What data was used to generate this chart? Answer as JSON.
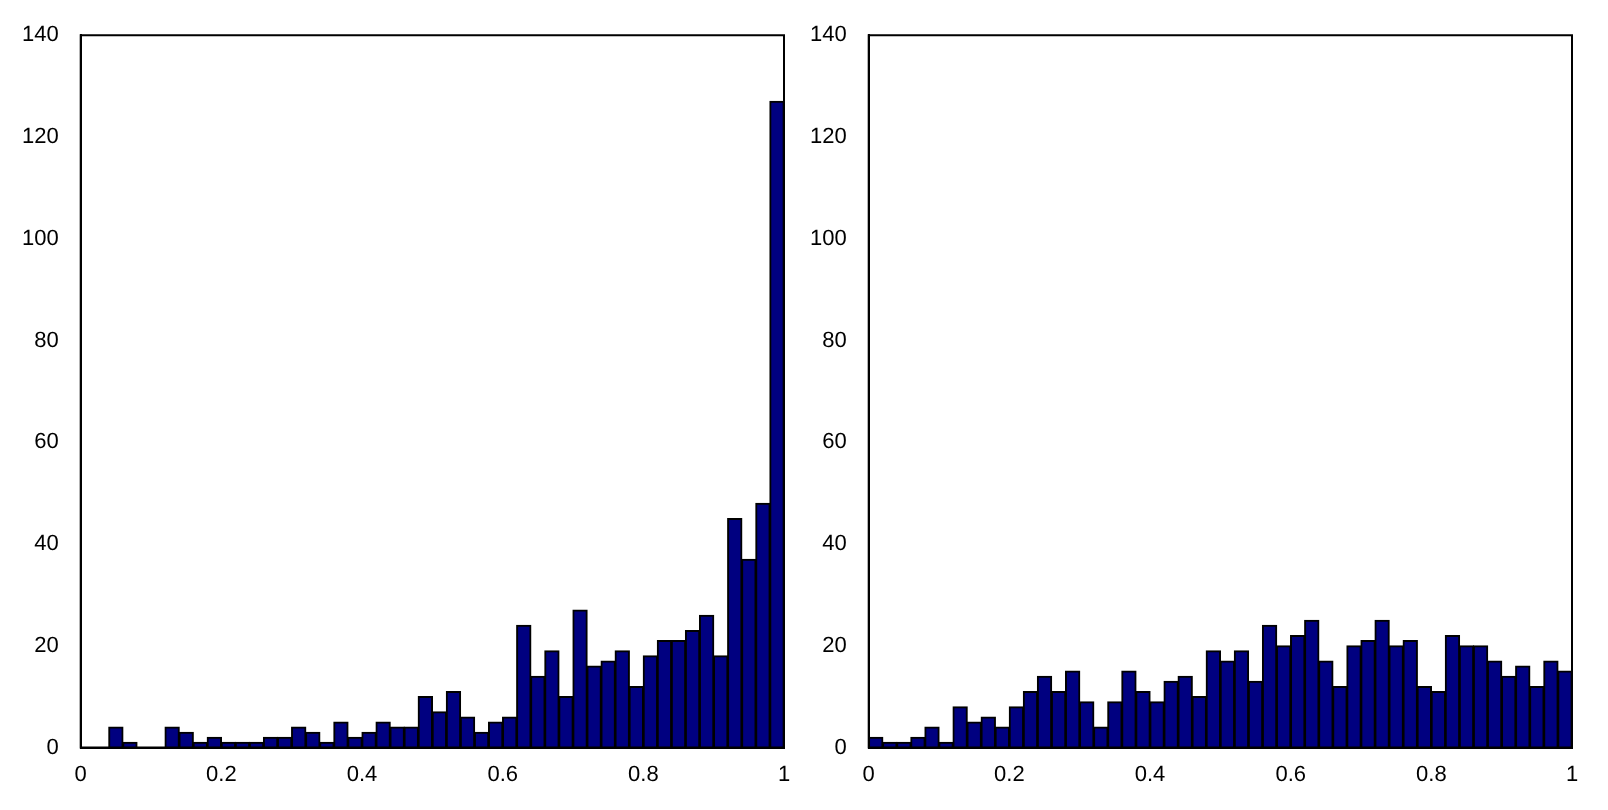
{
  "chart_data": [
    {
      "type": "histogram",
      "bins": [
        0,
        0.02,
        0.04,
        0.06,
        0.08,
        0.1,
        0.12,
        0.14,
        0.16,
        0.18,
        0.2,
        0.22,
        0.24,
        0.26,
        0.28,
        0.3,
        0.32,
        0.34,
        0.36,
        0.38,
        0.4,
        0.42,
        0.44,
        0.46,
        0.48,
        0.5,
        0.52,
        0.54,
        0.56,
        0.58,
        0.6,
        0.62,
        0.64,
        0.66,
        0.68,
        0.7,
        0.72,
        0.74,
        0.76,
        0.78,
        0.8,
        0.82,
        0.84,
        0.86,
        0.88,
        0.9,
        0.92,
        0.94,
        0.96,
        0.98,
        1
      ],
      "values": [
        0,
        0,
        4,
        1,
        0,
        0,
        4,
        3,
        1,
        2,
        1,
        1,
        1,
        2,
        2,
        4,
        3,
        1,
        5,
        2,
        3,
        5,
        4,
        4,
        10,
        7,
        11,
        6,
        3,
        5,
        6,
        24,
        14,
        19,
        10,
        27,
        16,
        17,
        19,
        12,
        18,
        21,
        21,
        23,
        26,
        18,
        45,
        37,
        48,
        127
      ],
      "color": "#000080",
      "xlim": [
        0,
        1
      ],
      "xticks": [
        0,
        0.2,
        0.4,
        0.6,
        0.8,
        1
      ],
      "ylim": [
        0,
        140
      ],
      "yticks": [
        0,
        20,
        40,
        60,
        80,
        100,
        120,
        140
      ],
      "grid": false
    },
    {
      "type": "histogram",
      "bins": [
        0,
        0.02,
        0.04,
        0.06,
        0.08,
        0.1,
        0.12,
        0.14,
        0.16,
        0.18,
        0.2,
        0.22,
        0.24,
        0.26,
        0.28,
        0.3,
        0.32,
        0.34,
        0.36,
        0.38,
        0.4,
        0.42,
        0.44,
        0.46,
        0.48,
        0.5,
        0.52,
        0.54,
        0.56,
        0.58,
        0.6,
        0.62,
        0.64,
        0.66,
        0.68,
        0.7,
        0.72,
        0.74,
        0.76,
        0.78,
        0.8,
        0.82,
        0.84,
        0.86,
        0.88,
        0.9,
        0.92,
        0.94,
        0.96,
        0.98,
        1
      ],
      "values": [
        2,
        1,
        1,
        2,
        4,
        1,
        8,
        5,
        6,
        4,
        8,
        11,
        14,
        11,
        15,
        9,
        4,
        9,
        15,
        11,
        9,
        13,
        14,
        10,
        19,
        17,
        19,
        13,
        24,
        20,
        22,
        25,
        17,
        12,
        20,
        21,
        25,
        20,
        21,
        12,
        11,
        22,
        20,
        20,
        17,
        14,
        16,
        12,
        17,
        15
      ],
      "color": "#000080",
      "xlim": [
        0,
        1
      ],
      "xticks": [
        0,
        0.2,
        0.4,
        0.6,
        0.8,
        1
      ],
      "ylim": [
        0,
        140
      ],
      "yticks": [
        0,
        20,
        40,
        60,
        80,
        100,
        120,
        140
      ],
      "grid": false
    }
  ]
}
